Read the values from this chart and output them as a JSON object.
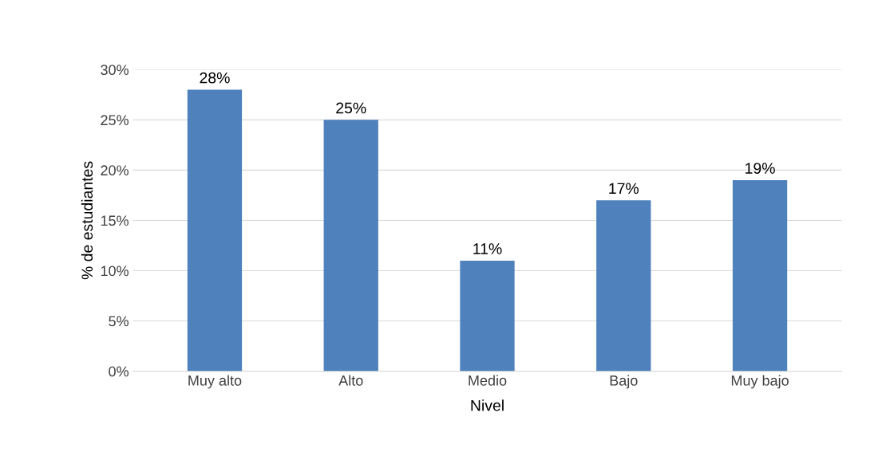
{
  "chart_data": {
    "type": "bar",
    "xlabel": "Nivel",
    "ylabel": "% de estudiantes",
    "categories": [
      "Muy alto",
      "Alto",
      "Medio",
      "Bajo",
      "Muy bajo"
    ],
    "values": [
      28,
      25,
      11,
      17,
      19
    ],
    "value_labels": [
      "28%",
      "25%",
      "11%",
      "17%",
      "19%"
    ],
    "color": "#4f81bd",
    "ylim": [
      0,
      30
    ],
    "yticks": [
      {
        "value": 0,
        "label": "0%"
      },
      {
        "value": 5,
        "label": "5%"
      },
      {
        "value": 10,
        "label": "10%"
      },
      {
        "value": 15,
        "label": "15%"
      },
      {
        "value": 20,
        "label": "20%"
      },
      {
        "value": 25,
        "label": "25%"
      },
      {
        "value": 30,
        "label": "30%"
      }
    ],
    "grid": "y",
    "legend": false
  }
}
